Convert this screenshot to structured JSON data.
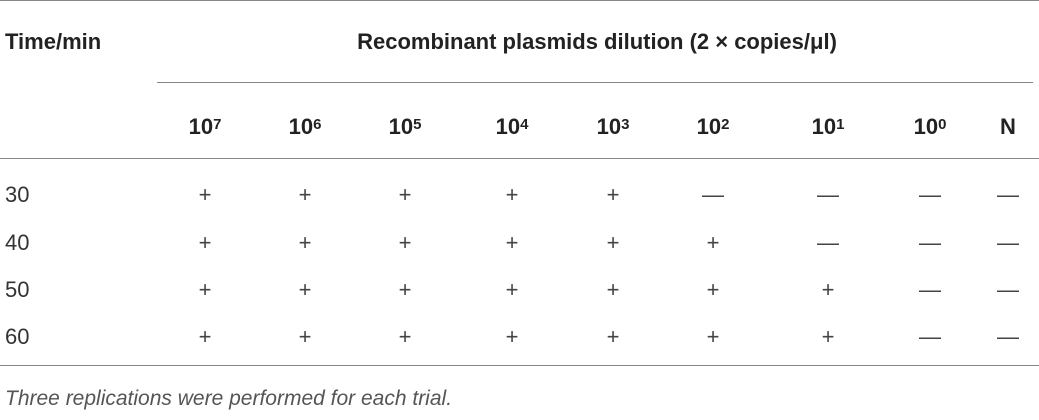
{
  "table": {
    "header": {
      "row_label": "Time/min",
      "group": "Recombinant plasmids dilution (2 × copies/μl)"
    },
    "columns": [
      {
        "base": "10",
        "exp": "7"
      },
      {
        "base": "10",
        "exp": "6"
      },
      {
        "base": "10",
        "exp": "5"
      },
      {
        "base": "10",
        "exp": "4"
      },
      {
        "base": "10",
        "exp": "3"
      },
      {
        "base": "10",
        "exp": "2"
      },
      {
        "base": "10",
        "exp": "1"
      },
      {
        "base": "10",
        "exp": "0"
      },
      {
        "base": "N"
      }
    ],
    "rows": [
      {
        "time": "30",
        "cells": [
          "+",
          "+",
          "+",
          "+",
          "+",
          "—",
          "—",
          "—",
          "—"
        ]
      },
      {
        "time": "40",
        "cells": [
          "+",
          "+",
          "+",
          "+",
          "+",
          "+",
          "—",
          "—",
          "—"
        ]
      },
      {
        "time": "50",
        "cells": [
          "+",
          "+",
          "+",
          "+",
          "+",
          "+",
          "+",
          "—",
          "—"
        ]
      },
      {
        "time": "60",
        "cells": [
          "+",
          "+",
          "+",
          "+",
          "+",
          "+",
          "+",
          "—",
          "—"
        ]
      }
    ],
    "footnote": "Three replications were performed for each trial."
  }
}
